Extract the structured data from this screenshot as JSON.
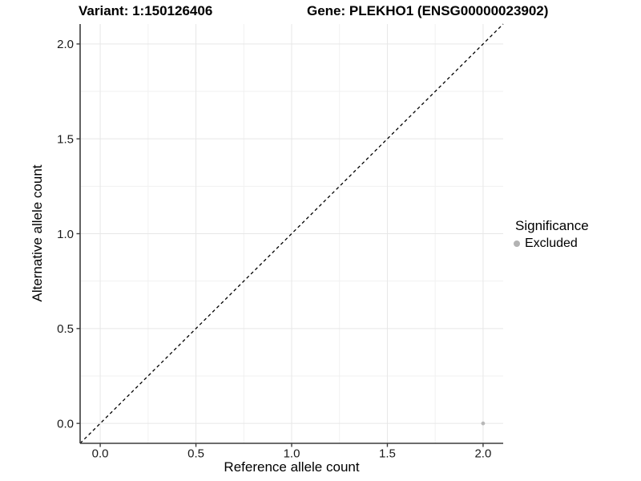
{
  "titles": {
    "variant": "Variant: 1:150126406",
    "gene": "Gene: PLEKHO1 (ENSG00000023902)"
  },
  "chart_data": {
    "type": "scatter",
    "title_left": "Variant: 1:150126406",
    "title_right": "Gene: PLEKHO1 (ENSG00000023902)",
    "xlabel": "Reference allele count",
    "ylabel": "Alternative allele count",
    "xlim": [
      -0.105,
      2.105
    ],
    "ylim": [
      -0.105,
      2.105
    ],
    "x_ticks": [
      0.0,
      0.5,
      1.0,
      1.5,
      2.0
    ],
    "y_ticks": [
      0.0,
      0.5,
      1.0,
      1.5,
      2.0
    ],
    "x_minor_ticks": [
      0.25,
      0.75,
      1.25,
      1.75
    ],
    "y_minor_ticks": [
      0.25,
      0.75,
      1.25,
      1.75
    ],
    "tick_label_decimals": 1,
    "grid": "on",
    "identity_line": {
      "style": "dashed",
      "from": [
        -0.105,
        -0.105
      ],
      "to": [
        2.105,
        2.105
      ]
    },
    "series": [
      {
        "name": "Excluded",
        "points": [
          {
            "x": 2.0,
            "y": 0.0
          }
        ]
      }
    ],
    "legend": {
      "title": "Significance",
      "position": "right",
      "items": [
        {
          "label": "Excluded",
          "color": "#b3b3b3"
        }
      ]
    },
    "colors": {
      "point_excluded": "#b8b8b8",
      "grid_major": "#e7e7e7",
      "grid_minor": "#f1f1f1",
      "axis_line": "#3c3c3c",
      "tick_mark": "#3c3c3c",
      "tick_label": "#1a1a1a",
      "identity_line": "#000000",
      "background": "#ffffff"
    }
  }
}
